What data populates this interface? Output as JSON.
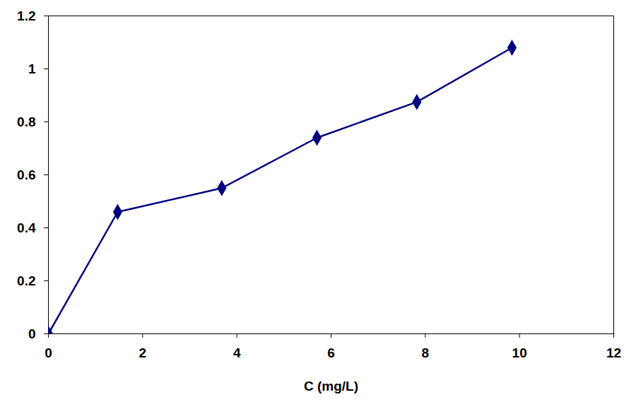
{
  "chart_data": {
    "type": "line",
    "x_label": "C (mg/L)",
    "x": [
      0,
      1.47,
      3.68,
      5.7,
      7.82,
      9.84
    ],
    "values": [
      0,
      0.46,
      0.55,
      0.74,
      0.875,
      1.08
    ],
    "color": "#000080",
    "marker": "diamond",
    "line_style": "solid",
    "xlim": [
      0,
      12
    ],
    "xticks": [
      0,
      2,
      4,
      6,
      8,
      10,
      12
    ],
    "ylim": [
      0,
      1.2
    ],
    "yticks": [
      0,
      0.2,
      0.4,
      0.6,
      0.8,
      1,
      1.2
    ],
    "grid": false
  }
}
